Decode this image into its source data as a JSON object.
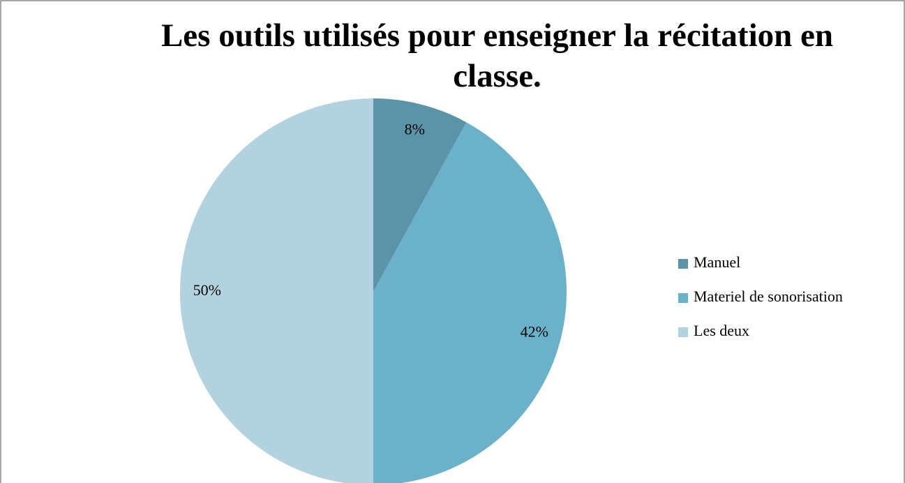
{
  "chart_data": {
    "type": "pie",
    "title": "Les outils utilisés pour enseigner la récitation en classe.",
    "categories": [
      "Manuel",
      "Materiel de sonorisation",
      "Les deux"
    ],
    "values": [
      8,
      42,
      50
    ],
    "value_labels": [
      "8%",
      "42%",
      "50%"
    ],
    "colors": [
      "#5b93a8",
      "#6cb1ca",
      "#b1d2de"
    ],
    "legend": "right"
  }
}
